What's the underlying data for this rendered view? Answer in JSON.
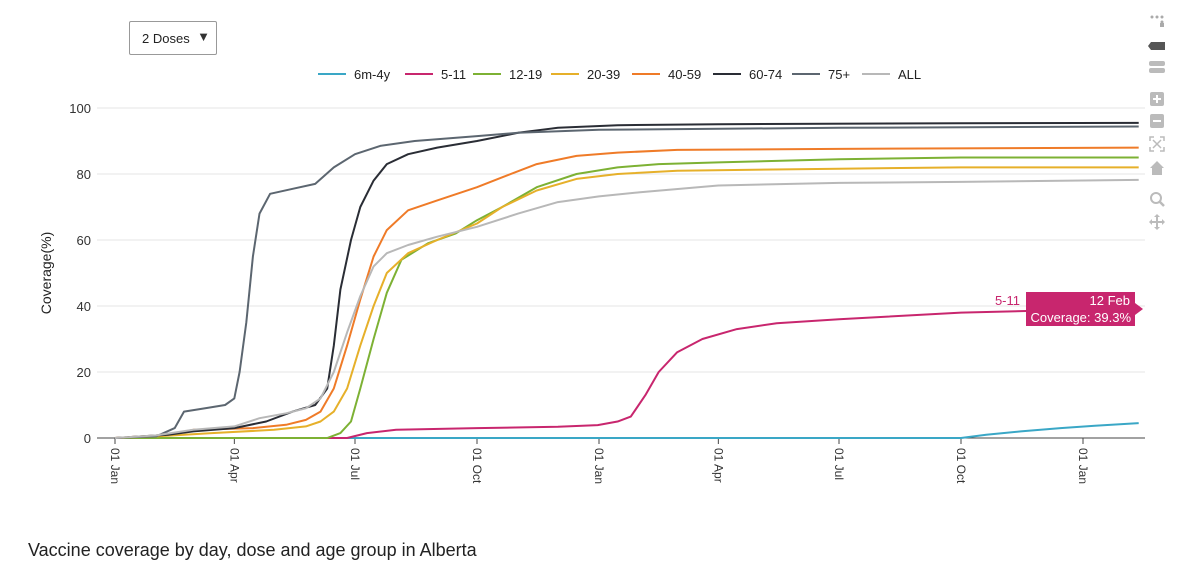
{
  "controls": {
    "dose_select_label": "2 Doses",
    "dose_select_arrow": "▼"
  },
  "caption": "Vaccine coverage by day, dose and age group in Alberta",
  "toolbar": [
    {
      "name": "download-icon"
    },
    {
      "name": "pan-icon-dark"
    },
    {
      "name": "zoom-range-icon"
    },
    {
      "name": "zoom-in-icon"
    },
    {
      "name": "zoom-out-icon"
    },
    {
      "name": "autoscale-icon"
    },
    {
      "name": "home-icon"
    },
    {
      "name": "zoom-icon"
    },
    {
      "name": "pan-icon"
    }
  ],
  "tooltip": {
    "series": "5-11",
    "date": "12 Feb",
    "value_text": "Coverage: 39.3%",
    "x": "2023-02-12",
    "y": 39.3,
    "color": "#c8266e"
  },
  "chart_data": {
    "type": "line",
    "title": "",
    "xlabel": "",
    "ylabel": "Coverage(%)",
    "x_type": "date",
    "xlim": [
      "2021-01-01",
      "2023-02-12"
    ],
    "ylim": [
      0,
      100
    ],
    "yticks": [
      0,
      20,
      40,
      60,
      80,
      100
    ],
    "xticks": [
      {
        "date": "2021-01-01",
        "label": "01 Jan"
      },
      {
        "date": "2021-04-01",
        "label": "01 Apr"
      },
      {
        "date": "2021-07-01",
        "label": "01 Jul"
      },
      {
        "date": "2021-10-01",
        "label": "01 Oct"
      },
      {
        "date": "2022-01-01",
        "label": "01 Jan"
      },
      {
        "date": "2022-04-01",
        "label": "01 Apr"
      },
      {
        "date": "2022-07-01",
        "label": "01 Jul"
      },
      {
        "date": "2022-10-01",
        "label": "01 Oct"
      },
      {
        "date": "2023-01-01",
        "label": "01 Jan"
      }
    ],
    "grid": true,
    "legend_position": "top",
    "series": [
      {
        "name": "6m-4y",
        "color": "#3aa7c6",
        "points": [
          [
            "2021-01-01",
            0
          ],
          [
            "2022-10-01",
            0
          ],
          [
            "2022-10-20",
            1
          ],
          [
            "2022-11-15",
            2
          ],
          [
            "2022-12-15",
            3
          ],
          [
            "2023-01-10",
            3.7
          ],
          [
            "2023-02-12",
            4.5
          ]
        ]
      },
      {
        "name": "5-11",
        "color": "#c8266e",
        "points": [
          [
            "2021-01-01",
            0
          ],
          [
            "2021-06-25",
            0
          ],
          [
            "2021-07-10",
            1.5
          ],
          [
            "2021-08-01",
            2.5
          ],
          [
            "2021-10-01",
            3
          ],
          [
            "2021-12-01",
            3.4
          ],
          [
            "2021-12-31",
            3.9
          ],
          [
            "2022-01-15",
            5
          ],
          [
            "2022-01-25",
            6.5
          ],
          [
            "2022-02-05",
            13
          ],
          [
            "2022-02-15",
            20
          ],
          [
            "2022-03-01",
            26
          ],
          [
            "2022-03-20",
            30
          ],
          [
            "2022-04-15",
            33
          ],
          [
            "2022-05-15",
            34.8
          ],
          [
            "2022-07-01",
            36
          ],
          [
            "2022-10-01",
            38
          ],
          [
            "2023-01-01",
            38.9
          ],
          [
            "2023-02-12",
            39.3
          ]
        ]
      },
      {
        "name": "12-19",
        "color": "#7db134",
        "points": [
          [
            "2021-01-01",
            0
          ],
          [
            "2021-06-10",
            0
          ],
          [
            "2021-06-20",
            1.5
          ],
          [
            "2021-06-28",
            5
          ],
          [
            "2021-07-05",
            15
          ],
          [
            "2021-07-15",
            30
          ],
          [
            "2021-07-25",
            44
          ],
          [
            "2021-08-05",
            54
          ],
          [
            "2021-08-25",
            59
          ],
          [
            "2021-09-15",
            62
          ],
          [
            "2021-10-01",
            66
          ],
          [
            "2021-10-20",
            70
          ],
          [
            "2021-11-15",
            76
          ],
          [
            "2021-12-15",
            80
          ],
          [
            "2022-01-15",
            82
          ],
          [
            "2022-02-15",
            83
          ],
          [
            "2022-04-01",
            83.5
          ],
          [
            "2022-07-01",
            84.5
          ],
          [
            "2022-10-01",
            85
          ],
          [
            "2023-02-12",
            85
          ]
        ]
      },
      {
        "name": "20-39",
        "color": "#e6b02a",
        "points": [
          [
            "2021-01-01",
            0
          ],
          [
            "2021-02-01",
            0.5
          ],
          [
            "2021-03-15",
            1.5
          ],
          [
            "2021-05-01",
            2.5
          ],
          [
            "2021-05-25",
            3.5
          ],
          [
            "2021-06-05",
            5
          ],
          [
            "2021-06-15",
            8
          ],
          [
            "2021-06-25",
            15
          ],
          [
            "2021-07-05",
            28
          ],
          [
            "2021-07-15",
            40
          ],
          [
            "2021-07-25",
            50
          ],
          [
            "2021-08-10",
            56
          ],
          [
            "2021-09-01",
            60
          ],
          [
            "2021-10-01",
            65
          ],
          [
            "2021-10-20",
            70
          ],
          [
            "2021-11-15",
            75
          ],
          [
            "2021-12-15",
            78.5
          ],
          [
            "2022-01-15",
            80
          ],
          [
            "2022-03-01",
            81
          ],
          [
            "2022-07-01",
            81.6
          ],
          [
            "2022-10-01",
            82
          ],
          [
            "2023-02-12",
            82
          ]
        ]
      },
      {
        "name": "40-59",
        "color": "#ef7b28",
        "points": [
          [
            "2021-01-01",
            0
          ],
          [
            "2021-02-10",
            1
          ],
          [
            "2021-03-01",
            2.5
          ],
          [
            "2021-04-15",
            3
          ],
          [
            "2021-05-10",
            4
          ],
          [
            "2021-05-25",
            5.5
          ],
          [
            "2021-06-05",
            8
          ],
          [
            "2021-06-15",
            15
          ],
          [
            "2021-06-25",
            28
          ],
          [
            "2021-07-05",
            42
          ],
          [
            "2021-07-15",
            55
          ],
          [
            "2021-07-25",
            63
          ],
          [
            "2021-08-10",
            69
          ],
          [
            "2021-09-01",
            72
          ],
          [
            "2021-10-01",
            76
          ],
          [
            "2021-10-20",
            79
          ],
          [
            "2021-11-15",
            83
          ],
          [
            "2021-12-15",
            85.5
          ],
          [
            "2022-01-15",
            86.5
          ],
          [
            "2022-03-01",
            87.3
          ],
          [
            "2022-07-01",
            87.6
          ],
          [
            "2023-02-12",
            88
          ]
        ]
      },
      {
        "name": "60-74",
        "color": "#2a2d35",
        "points": [
          [
            "2021-01-01",
            0
          ],
          [
            "2021-02-10",
            1
          ],
          [
            "2021-03-01",
            2
          ],
          [
            "2021-04-01",
            3
          ],
          [
            "2021-04-25",
            5
          ],
          [
            "2021-05-15",
            8
          ],
          [
            "2021-06-01",
            10
          ],
          [
            "2021-06-10",
            15
          ],
          [
            "2021-06-15",
            28
          ],
          [
            "2021-06-20",
            45
          ],
          [
            "2021-06-28",
            60
          ],
          [
            "2021-07-05",
            70
          ],
          [
            "2021-07-15",
            78
          ],
          [
            "2021-07-25",
            83
          ],
          [
            "2021-08-10",
            86
          ],
          [
            "2021-09-01",
            88
          ],
          [
            "2021-10-01",
            90
          ],
          [
            "2021-11-01",
            92.5
          ],
          [
            "2021-12-01",
            94
          ],
          [
            "2022-01-15",
            94.8
          ],
          [
            "2022-04-01",
            95.1
          ],
          [
            "2022-10-01",
            95.4
          ],
          [
            "2023-02-12",
            95.5
          ]
        ]
      },
      {
        "name": "75+",
        "color": "#5c6670",
        "points": [
          [
            "2021-01-01",
            0
          ],
          [
            "2021-02-01",
            0.5
          ],
          [
            "2021-02-15",
            3
          ],
          [
            "2021-02-22",
            8
          ],
          [
            "2021-03-10",
            9
          ],
          [
            "2021-03-25",
            10
          ],
          [
            "2021-04-01",
            12
          ],
          [
            "2021-04-05",
            20
          ],
          [
            "2021-04-10",
            35
          ],
          [
            "2021-04-15",
            55
          ],
          [
            "2021-04-20",
            68
          ],
          [
            "2021-04-28",
            74
          ],
          [
            "2021-05-15",
            75.5
          ],
          [
            "2021-06-01",
            77
          ],
          [
            "2021-06-15",
            82
          ],
          [
            "2021-07-01",
            86
          ],
          [
            "2021-07-20",
            88.5
          ],
          [
            "2021-08-15",
            90
          ],
          [
            "2021-10-01",
            91.5
          ],
          [
            "2021-11-01",
            92.5
          ],
          [
            "2022-01-01",
            93.4
          ],
          [
            "2022-07-01",
            94
          ],
          [
            "2023-02-12",
            94.4
          ]
        ]
      },
      {
        "name": "ALL",
        "color": "#b8b8b8",
        "points": [
          [
            "2021-01-01",
            0
          ],
          [
            "2021-02-01",
            0.8
          ],
          [
            "2021-03-01",
            2.5
          ],
          [
            "2021-04-01",
            3.5
          ],
          [
            "2021-04-20",
            6
          ],
          [
            "2021-05-10",
            7.5
          ],
          [
            "2021-05-25",
            9
          ],
          [
            "2021-06-05",
            12
          ],
          [
            "2021-06-15",
            20
          ],
          [
            "2021-06-25",
            32
          ],
          [
            "2021-07-05",
            43
          ],
          [
            "2021-07-15",
            52
          ],
          [
            "2021-07-25",
            56
          ],
          [
            "2021-08-10",
            58.5
          ],
          [
            "2021-09-01",
            61
          ],
          [
            "2021-10-01",
            64
          ],
          [
            "2021-11-01",
            68
          ],
          [
            "2021-12-01",
            71.5
          ],
          [
            "2022-01-01",
            73.2
          ],
          [
            "2022-02-01",
            74.5
          ],
          [
            "2022-04-01",
            76.5
          ],
          [
            "2022-07-01",
            77.3
          ],
          [
            "2022-10-01",
            77.6
          ],
          [
            "2023-02-12",
            78.2
          ]
        ]
      }
    ]
  }
}
